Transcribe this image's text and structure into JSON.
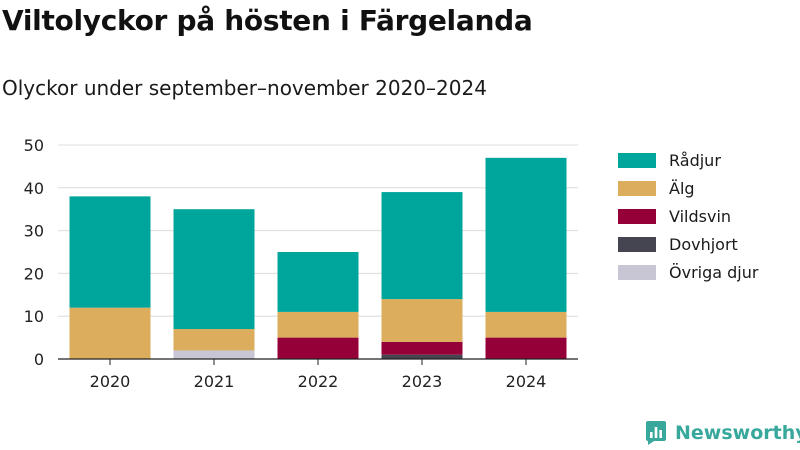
{
  "title": "Viltolyckor på hösten i Färgelanda",
  "subtitle": "Olyckor under september–november 2020–2024",
  "brand": {
    "name": "Newsworthy",
    "icon": "newsworthy-logo-icon"
  },
  "chart_data": {
    "type": "bar",
    "stacked": true,
    "categories": [
      "2020",
      "2021",
      "2022",
      "2023",
      "2024"
    ],
    "series": [
      {
        "name": "Övriga djur",
        "color": "#c8c6d4",
        "values": [
          0,
          2,
          0,
          0,
          0
        ]
      },
      {
        "name": "Dovhjort",
        "color": "#454552",
        "values": [
          0,
          0,
          0,
          1,
          0
        ]
      },
      {
        "name": "Vildsvin",
        "color": "#960038",
        "values": [
          0,
          0,
          5,
          3,
          5
        ]
      },
      {
        "name": "Älg",
        "color": "#dbad5d",
        "values": [
          12,
          5,
          6,
          10,
          6
        ]
      },
      {
        "name": "Rådjur",
        "color": "#00a59b",
        "values": [
          26,
          28,
          14,
          25,
          36
        ]
      }
    ],
    "legend_order": [
      "Rådjur",
      "Älg",
      "Vildsvin",
      "Dovhjort",
      "Övriga djur"
    ],
    "yticks": [
      0,
      10,
      20,
      30,
      40,
      50
    ],
    "ylim": [
      0,
      50
    ],
    "xlabel": "",
    "ylabel": "",
    "grid": true,
    "legend_position": "right"
  }
}
